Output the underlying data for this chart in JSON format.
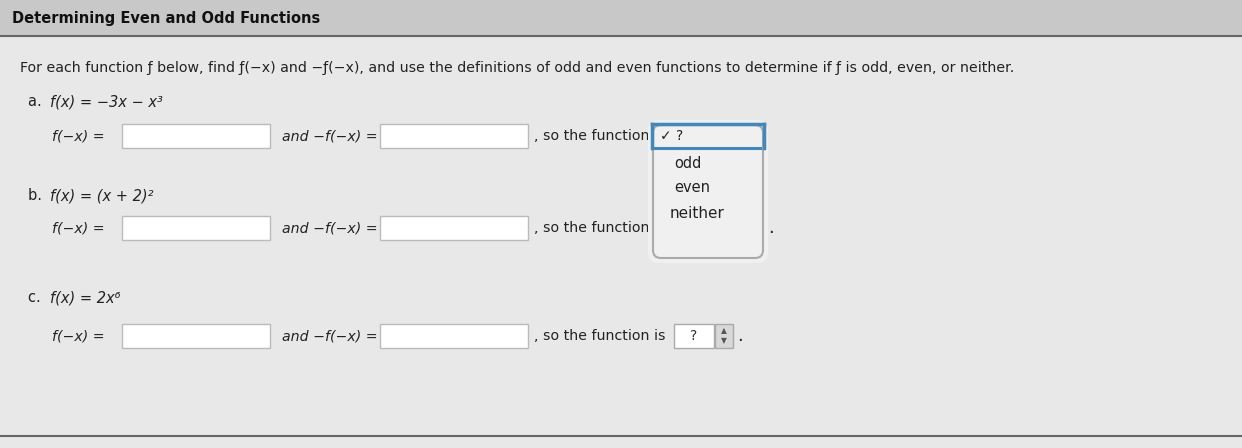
{
  "title": "Determining Even and Odd Functions",
  "bg_top": "#c8c8c8",
  "bg_main": "#e8e8e8",
  "header_bg": "#d0d0d0",
  "instruction": "For each function f below, find f(−x) and −f(−x), and use the definitions of odd and even functions to determine if f is odd, even, or neither.",
  "part_a_label": "a. f(x) = −3x − x³",
  "part_b_label": "b. f(x) = (x + 2)²",
  "part_c_label": "c. f(x) = 2x⁶",
  "row_label_fx": "f(−x) =",
  "row_label_neg": "and −f(−x) =",
  "row_label_so_ab": ", so the function",
  "row_label_so_c": ", so the function is",
  "dropdown_items_top": "✓ ?",
  "dropdown_items": [
    "odd",
    "even",
    "neither"
  ],
  "spinner_label": "?",
  "box_fill": "#ffffff",
  "box_border": "#bbbbbb",
  "dropdown_border_top": "#4488bb",
  "dropdown_border_bottom": "#aaaaaa",
  "dropdown_bg": "#f0f0f0",
  "spinner_border": "#aaaaaa",
  "title_color": "#111111",
  "text_color": "#222222"
}
